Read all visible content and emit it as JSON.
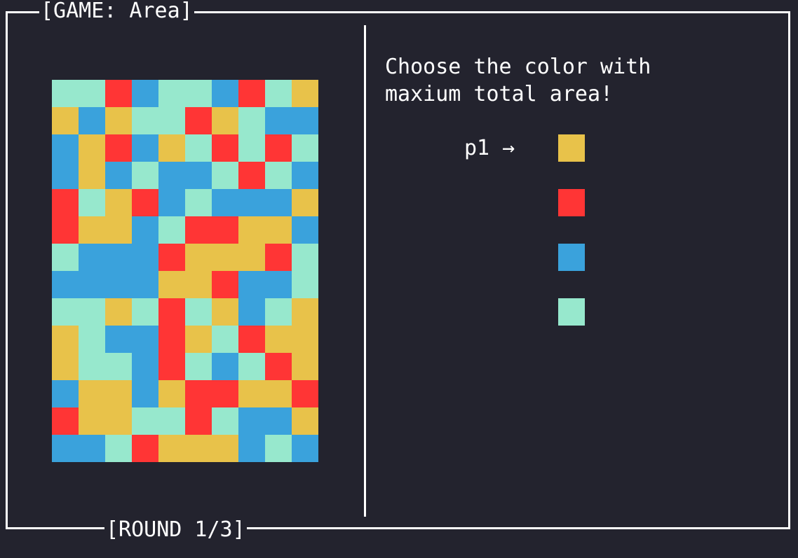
{
  "window": {
    "title": "[GAME: Area]",
    "footer": "[ROUND 1/3]"
  },
  "prompt": {
    "line1": "Choose the color with",
    "line2": "maxium total area!"
  },
  "cursor": {
    "label": "p1 →",
    "selected_index": 0
  },
  "palette": {
    "Y": "#e8c24a",
    "R": "#ff3535",
    "B": "#3aa2dc",
    "M": "#97e8cd"
  },
  "options": [
    "Y",
    "R",
    "B",
    "M"
  ],
  "grid": {
    "columns": 10,
    "rows": [
      [
        "M",
        "M",
        "R",
        "B",
        "M",
        "M",
        "B",
        "R",
        "M",
        "Y"
      ],
      [
        "Y",
        "B",
        "Y",
        "M",
        "M",
        "R",
        "Y",
        "M",
        "B",
        "B"
      ],
      [
        "B",
        "Y",
        "R",
        "B",
        "Y",
        "M",
        "R",
        "M",
        "R",
        "M"
      ],
      [
        "B",
        "Y",
        "B",
        "M",
        "B",
        "B",
        "M",
        "R",
        "M",
        "B"
      ],
      [
        "R",
        "M",
        "Y",
        "R",
        "B",
        "M",
        "B",
        "B",
        "B",
        "Y"
      ],
      [
        "R",
        "Y",
        "Y",
        "B",
        "M",
        "R",
        "R",
        "Y",
        "Y",
        "B"
      ],
      [
        "M",
        "B",
        "B",
        "B",
        "R",
        "Y",
        "Y",
        "Y",
        "R",
        "M"
      ],
      [
        "B",
        "B",
        "B",
        "B",
        "Y",
        "Y",
        "R",
        "B",
        "B",
        "M"
      ],
      [
        "M",
        "M",
        "Y",
        "M",
        "R",
        "M",
        "Y",
        "B",
        "M",
        "Y"
      ],
      [
        "Y",
        "M",
        "B",
        "B",
        "R",
        "Y",
        "M",
        "R",
        "Y",
        "Y"
      ],
      [
        "Y",
        "M",
        "M",
        "B",
        "R",
        "M",
        "B",
        "M",
        "R",
        "Y"
      ],
      [
        "B",
        "Y",
        "Y",
        "B",
        "Y",
        "R",
        "R",
        "Y",
        "Y",
        "R"
      ],
      [
        "R",
        "Y",
        "Y",
        "M",
        "M",
        "R",
        "M",
        "B",
        "B",
        "Y"
      ],
      [
        "B",
        "B",
        "M",
        "R",
        "Y",
        "Y",
        "Y",
        "B",
        "M",
        "B"
      ]
    ]
  }
}
